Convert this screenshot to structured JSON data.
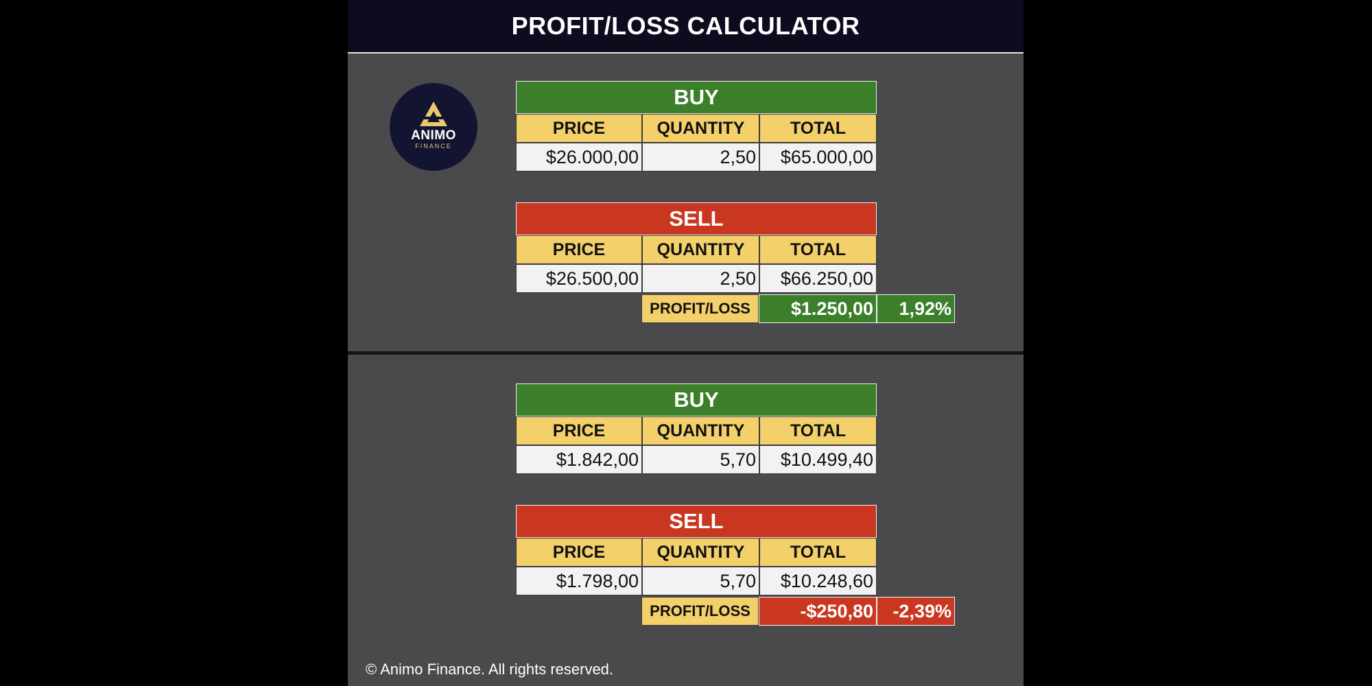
{
  "title": "PROFIT/LOSS CALCULATOR",
  "logo": {
    "brand": "ANIMO",
    "sub": "FINANCE",
    "icon": "triangle-logo-icon"
  },
  "columns": {
    "price": "PRICE",
    "quantity": "QUANTITY",
    "total": "TOTAL"
  },
  "profit_loss_label": "PROFIT/LOSS",
  "colors": {
    "buy": "#3c7f2a",
    "sell": "#c93720",
    "header": "#f3d06a",
    "background": "#4a494b"
  },
  "example1": {
    "buy": {
      "label": "BUY",
      "price": "$26.000,00",
      "quantity": "2,50",
      "total": "$65.000,00"
    },
    "sell": {
      "label": "SELL",
      "price": "$26.500,00",
      "quantity": "2,50",
      "total": "$66.250,00"
    },
    "result": {
      "amount": "$1.250,00",
      "percent": "1,92%",
      "status": "profit"
    }
  },
  "example2": {
    "buy": {
      "label": "BUY",
      "price": "$1.842,00",
      "quantity": "5,70",
      "total": "$10.499,40"
    },
    "sell": {
      "label": "SELL",
      "price": "$1.798,00",
      "quantity": "5,70",
      "total": "$10.248,60"
    },
    "result": {
      "amount": "-$250,80",
      "percent": "-2,39%",
      "status": "loss"
    }
  },
  "footer": "© Animo Finance. All rights reserved."
}
